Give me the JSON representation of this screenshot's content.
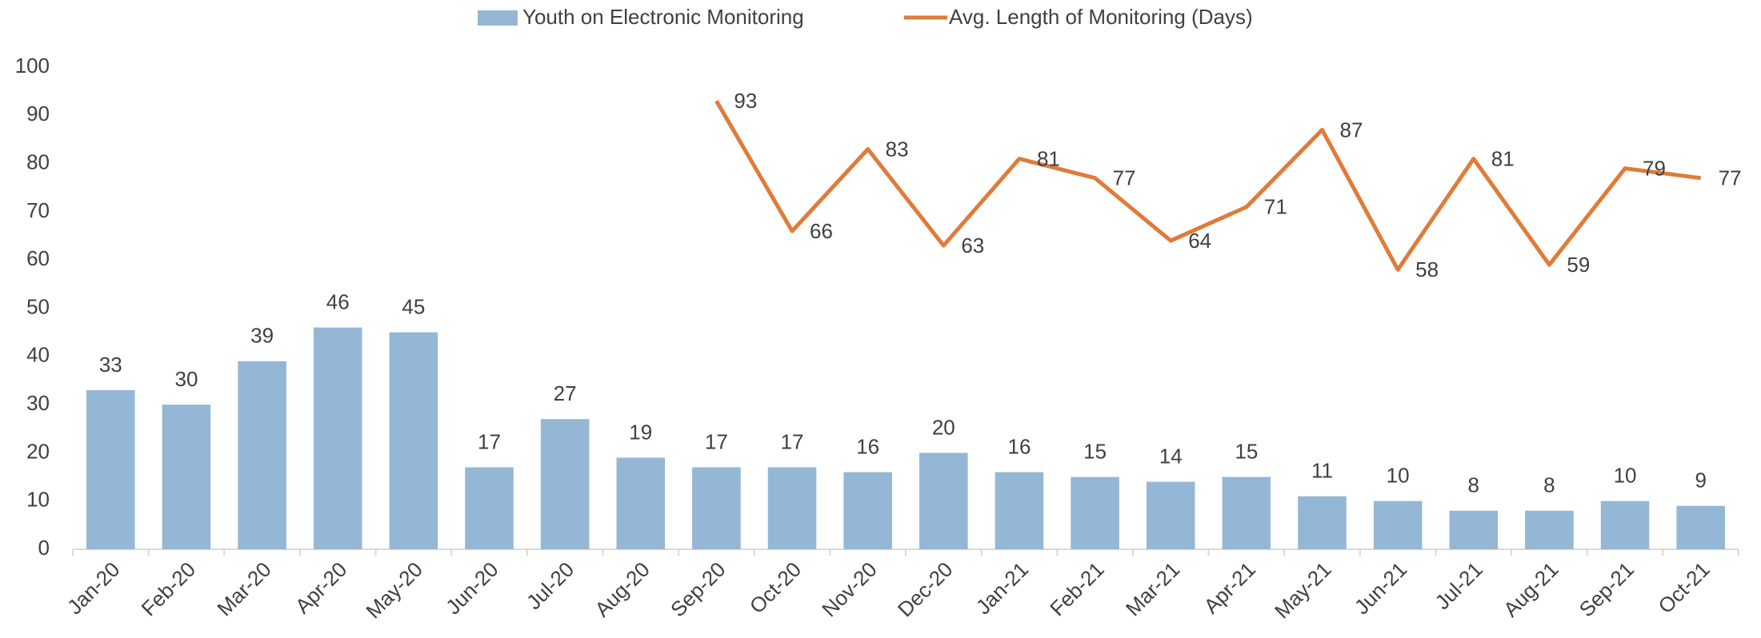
{
  "chart_data": {
    "type": "bar",
    "categories": [
      "Jan-20",
      "Feb-20",
      "Mar-20",
      "Apr-20",
      "May-20",
      "Jun-20",
      "Jul-20",
      "Aug-20",
      "Sep-20",
      "Oct-20",
      "Nov-20",
      "Dec-20",
      "Jan-21",
      "Feb-21",
      "Mar-21",
      "Apr-21",
      "May-21",
      "Jun-21",
      "Jul-21",
      "Aug-21",
      "Sep-21",
      "Oct-21"
    ],
    "series": [
      {
        "name": "Youth on Electronic Monitoring",
        "type": "bar",
        "color": "#95b7d6",
        "values": [
          33,
          30,
          39,
          46,
          45,
          17,
          27,
          19,
          17,
          17,
          16,
          20,
          16,
          15,
          14,
          15,
          11,
          10,
          8,
          8,
          10,
          9
        ]
      },
      {
        "name": "Avg. Length of Monitoring (Days)",
        "type": "line",
        "color": "#e07b39",
        "values": [
          null,
          null,
          null,
          null,
          null,
          null,
          null,
          null,
          93,
          66,
          83,
          63,
          81,
          77,
          64,
          71,
          87,
          58,
          81,
          59,
          79,
          77
        ]
      }
    ],
    "ylim": [
      0,
      100
    ],
    "yticks": [
      0,
      10,
      20,
      30,
      40,
      50,
      60,
      70,
      80,
      90,
      100
    ],
    "grid": false,
    "legend": "top"
  }
}
